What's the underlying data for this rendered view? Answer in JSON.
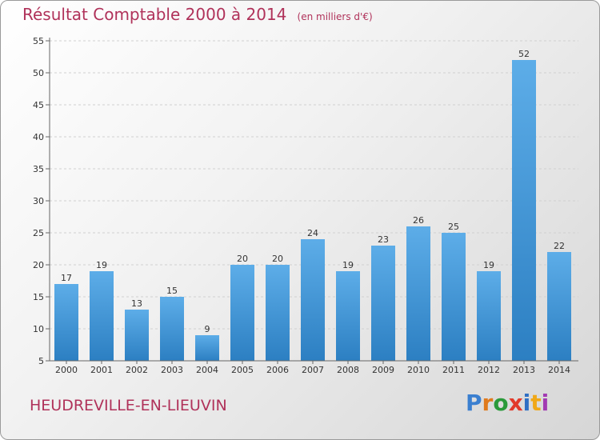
{
  "title": "Résultat Comptable 2000 à 2014",
  "unit_note": "(en milliers d'€)",
  "commune": "HEUDREVILLE-EN-LIEUVIN",
  "logo": {
    "letters": [
      "P",
      "r",
      "o",
      "x",
      "i",
      "t",
      "i"
    ],
    "colors": [
      "#3a7fd0",
      "#e07a1c",
      "#2a9a3a",
      "#e23a2a",
      "#2e6fc4",
      "#f0a818",
      "#a23ab2"
    ]
  },
  "colors": {
    "bar_top": "#5dade8",
    "bar_bottom": "#2c7fc2",
    "title": "#b0325a"
  },
  "chart_data": {
    "type": "bar",
    "categories": [
      "2000",
      "2001",
      "2002",
      "2003",
      "2004",
      "2005",
      "2006",
      "2007",
      "2008",
      "2009",
      "2010",
      "2011",
      "2012",
      "2013",
      "2014"
    ],
    "values": [
      17,
      19,
      13,
      15,
      9,
      20,
      20,
      24,
      19,
      23,
      26,
      25,
      19,
      52,
      22
    ],
    "title": "Résultat Comptable 2000 à 2014",
    "xlabel": "",
    "ylabel": "",
    "ylim": [
      5,
      55
    ],
    "yticks": [
      5,
      10,
      15,
      20,
      25,
      30,
      35,
      40,
      45,
      50,
      55
    ],
    "grid": true,
    "legend": "none"
  }
}
